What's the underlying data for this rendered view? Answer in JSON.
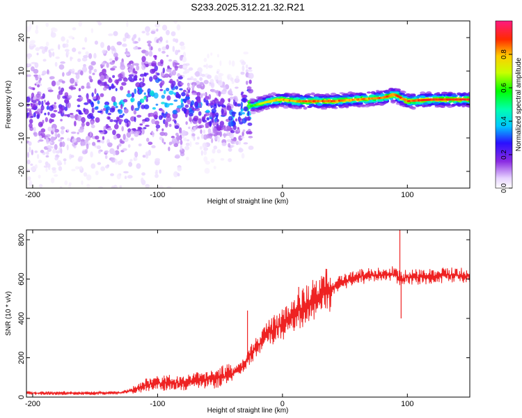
{
  "title": "S233.2025.312.21.32.R21",
  "chart_data": [
    {
      "type": "heatmap",
      "name": "spectrogram",
      "xlabel": "Height of straight line (km)",
      "ylabel": "Frequency (Hz)",
      "xlim": [
        -205,
        150
      ],
      "ylim": [
        -25,
        25
      ],
      "xticks": [
        -200,
        -100,
        0,
        100
      ],
      "yticks": [
        -20,
        -10,
        0,
        10,
        20
      ],
      "colorbar": {
        "label": "Normalized spectral amplitude",
        "range": [
          0,
          1
        ],
        "ticks": [
          0.0,
          0.2,
          0.4,
          0.6,
          0.8
        ],
        "tick_labels": [
          "0.0",
          "0.2",
          "0.4",
          "0.6",
          "0.8"
        ]
      },
      "ridge": {
        "x": [
          -205,
          -180,
          -160,
          -140,
          -120,
          -100,
          -80,
          -60,
          -40,
          -30,
          -20,
          -10,
          0,
          10,
          20,
          40,
          60,
          80,
          90,
          100,
          120,
          150
        ],
        "freq": [
          -1.5,
          -1,
          -0.5,
          0,
          1.5,
          2,
          0.5,
          -2,
          -4,
          -1,
          0,
          1,
          1.5,
          1,
          1,
          1,
          1.5,
          2,
          3,
          1,
          1.5,
          1.5
        ],
        "amplitude": [
          0.2,
          0.2,
          0.2,
          0.3,
          0.3,
          0.35,
          0.3,
          0.3,
          0.3,
          0.4,
          0.7,
          0.8,
          0.85,
          0.85,
          0.9,
          0.9,
          0.85,
          0.9,
          0.9,
          0.9,
          0.95,
          0.95
        ]
      }
    },
    {
      "type": "line",
      "name": "snr",
      "xlabel": "Height of straight line (km)",
      "ylabel": "SNR (10 * v/v)",
      "xlim": [
        -205,
        150
      ],
      "ylim": [
        0,
        850
      ],
      "xticks": [
        -200,
        -100,
        0,
        100
      ],
      "yticks": [
        0,
        200,
        400,
        600,
        800
      ],
      "color": "#ee2222",
      "series": [
        {
          "name": "SNR",
          "x": [
            -205,
            -190,
            -170,
            -150,
            -130,
            -120,
            -110,
            -100,
            -90,
            -80,
            -70,
            -60,
            -50,
            -40,
            -35,
            -30,
            -25,
            -20,
            -15,
            -10,
            -5,
            0,
            5,
            10,
            15,
            20,
            30,
            40,
            50,
            60,
            70,
            80,
            90,
            95,
            100,
            110,
            120,
            130,
            140,
            150
          ],
          "y": [
            20,
            20,
            20,
            20,
            22,
            35,
            60,
            70,
            75,
            70,
            80,
            90,
            100,
            120,
            140,
            170,
            220,
            260,
            300,
            330,
            350,
            370,
            400,
            430,
            450,
            470,
            520,
            560,
            590,
            610,
            620,
            625,
            625,
            600,
            610,
            610,
            615,
            620,
            620,
            615
          ]
        }
      ],
      "spikes": [
        {
          "x": -28,
          "y": 440
        },
        {
          "x": 13,
          "y": 560
        },
        {
          "x": 94,
          "y": 850
        },
        {
          "x": 95,
          "y": 400
        }
      ]
    }
  ]
}
